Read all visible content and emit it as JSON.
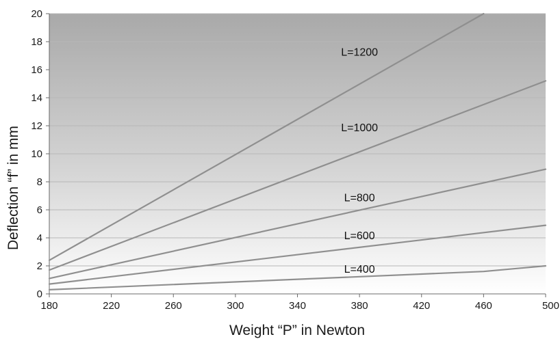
{
  "chart_data": {
    "type": "line",
    "title": "",
    "xlabel": "Weight “P” in Newton",
    "ylabel": "Deflection “f” in mm",
    "xlim": [
      180,
      500
    ],
    "ylim": [
      0,
      20
    ],
    "x_ticks": [
      180,
      220,
      260,
      300,
      340,
      380,
      420,
      460,
      500
    ],
    "y_ticks": [
      0,
      2,
      4,
      6,
      8,
      10,
      12,
      14,
      16,
      18,
      20
    ],
    "grid": true,
    "legend": "none",
    "series": [
      {
        "name": "L=1200",
        "points": [
          [
            180,
            2.4
          ],
          [
            460,
            20
          ]
        ],
        "label_at": [
          380,
          17.3
        ]
      },
      {
        "name": "L=1000",
        "points": [
          [
            180,
            1.7
          ],
          [
            500,
            15.2
          ]
        ],
        "label_at": [
          380,
          11.9
        ]
      },
      {
        "name": "L=800",
        "points": [
          [
            180,
            1.1
          ],
          [
            500,
            8.9
          ]
        ],
        "label_at": [
          380,
          6.9
        ]
      },
      {
        "name": "L=600",
        "points": [
          [
            180,
            0.7
          ],
          [
            500,
            4.9
          ]
        ],
        "label_at": [
          380,
          4.2
        ]
      },
      {
        "name": "L=400",
        "points": [
          [
            180,
            0.3
          ],
          [
            460,
            1.6
          ],
          [
            500,
            2.0
          ]
        ],
        "label_at": [
          380,
          1.8
        ]
      }
    ],
    "colors": {
      "line": "#8f8f8f",
      "grid": "#b7b7b7",
      "background_top": "#a9a9a9",
      "background_bottom": "#ffffff"
    }
  }
}
